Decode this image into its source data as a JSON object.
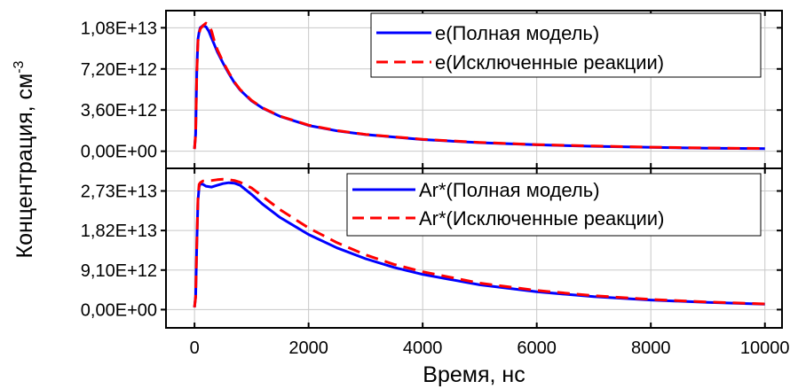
{
  "chart_data": [
    {
      "type": "line",
      "panel": "top",
      "xlabel": "Время, нс",
      "ylabel": "Концентрация, см",
      "ylabel_superscript": "-3",
      "xlim": [
        -500,
        10300
      ],
      "ylim": [
        -1500000000000.0,
        12300000000000.0
      ],
      "xticks": [
        0,
        2000,
        4000,
        6000,
        8000,
        10000
      ],
      "xtick_labels": [
        "0",
        "2000",
        "4000",
        "6000",
        "8000",
        "10000"
      ],
      "yticks": [
        0,
        3600000000000.0,
        7200000000000.0,
        10800000000000.0
      ],
      "ytick_labels": [
        "0,00E+00",
        "3,60E+12",
        "7,20E+12",
        "1,08E+13"
      ],
      "grid": true,
      "legend_position": "top-right",
      "series": [
        {
          "name": "e(Полная модель)",
          "color": "#0000ff",
          "dash": "solid",
          "x": [
            0,
            20,
            40,
            60,
            80,
            100,
            150,
            200,
            250,
            300,
            350,
            400,
            500,
            600,
            700,
            800,
            1000,
            1200,
            1500,
            2000,
            2500,
            3000,
            4000,
            5000,
            6000,
            7000,
            8000,
            9000,
            10000
          ],
          "y": [
            200000000000.0,
            1500000000000.0,
            7000000000000.0,
            9800000000000.0,
            10400000000000.0,
            10800000000000.0,
            11000000000000.0,
            10900000000000.0,
            10500000000000.0,
            9900000000000.0,
            9300000000000.0,
            8700000000000.0,
            7700000000000.0,
            6800000000000.0,
            6000000000000.0,
            5350000000000.0,
            4400000000000.0,
            3750000000000.0,
            3050000000000.0,
            2250000000000.0,
            1780000000000.0,
            1450000000000.0,
            1020000000000.0,
            750000000000.0,
            560000000000.0,
            430000000000.0,
            340000000000.0,
            270000000000.0,
            220000000000.0
          ]
        },
        {
          "name": "e(Исключенные реакции)",
          "color": "#ff0000",
          "dash": "dashed",
          "x": [
            0,
            20,
            40,
            60,
            80,
            100,
            150,
            200,
            250,
            300,
            350,
            400,
            500,
            600,
            700,
            800,
            1000,
            1200,
            1500,
            2000,
            2500,
            3000,
            4000,
            5000,
            6000,
            7000,
            8000,
            9000,
            10000
          ],
          "y": [
            200000000000.0,
            1500000000000.0,
            6800000000000.0,
            9600000000000.0,
            10300000000000.0,
            10700000000000.0,
            11000000000000.0,
            11200000000000.0,
            11100000000000.0,
            10500000000000.0,
            9600000000000.0,
            8900000000000.0,
            7800000000000.0,
            6900000000000.0,
            6050000000000.0,
            5400000000000.0,
            4450000000000.0,
            3780000000000.0,
            3070000000000.0,
            2280000000000.0,
            1800000000000.0,
            1470000000000.0,
            1040000000000.0,
            770000000000.0,
            580000000000.0,
            450000000000.0,
            355000000000.0,
            285000000000.0,
            235000000000.0
          ]
        }
      ]
    },
    {
      "type": "line",
      "panel": "bottom",
      "xlim": [
        -500,
        10300
      ],
      "ylim": [
        -4200000000000.0,
        32500000000000.0
      ],
      "xticks": [
        0,
        2000,
        4000,
        6000,
        8000,
        10000
      ],
      "yticks": [
        0,
        9100000000000.0,
        18200000000000.0,
        27300000000000.0
      ],
      "ytick_labels": [
        "0,00E+00",
        "9,10E+12",
        "1,82E+13",
        "2,73E+13"
      ],
      "grid": true,
      "legend_position": "top-right",
      "series": [
        {
          "name": "Ar*(Полная модель)",
          "color": "#0000ff",
          "dash": "solid",
          "x": [
            0,
            20,
            40,
            60,
            80,
            100,
            150,
            200,
            300,
            400,
            500,
            600,
            700,
            800,
            1000,
            1200,
            1500,
            2000,
            2500,
            3000,
            3500,
            4000,
            5000,
            6000,
            7000,
            8000,
            9000,
            10000
          ],
          "y": [
            500000000000.0,
            3000000000000.0,
            15000000000000.0,
            25000000000000.0,
            28200000000000.0,
            29000000000000.0,
            28800000000000.0,
            28400000000000.0,
            28200000000000.0,
            28600000000000.0,
            29000000000000.0,
            29200000000000.0,
            29100000000000.0,
            28600000000000.0,
            26500000000000.0,
            24200000000000.0,
            21200000000000.0,
            17300000000000.0,
            14200000000000.0,
            11700000000000.0,
            9700000000000.0,
            8100000000000.0,
            5700000000000.0,
            4100000000000.0,
            3000000000000.0,
            2200000000000.0,
            1650000000000.0,
            1250000000000.0
          ]
        },
        {
          "name": "Ar*(Исключенные реакции)",
          "color": "#ff0000",
          "dash": "dashed",
          "x": [
            0,
            20,
            40,
            60,
            80,
            100,
            150,
            200,
            300,
            400,
            500,
            600,
            700,
            800,
            1000,
            1200,
            1500,
            2000,
            2500,
            3000,
            3500,
            4000,
            5000,
            6000,
            7000,
            8000,
            9000,
            10000
          ],
          "y": [
            500000000000.0,
            3000000000000.0,
            15000000000000.0,
            25500000000000.0,
            28800000000000.0,
            29200000000000.0,
            29600000000000.0,
            29600000000000.0,
            29700000000000.0,
            29900000000000.0,
            30000000000000.0,
            29900000000000.0,
            29700000000000.0,
            29300000000000.0,
            28000000000000.0,
            26000000000000.0,
            23000000000000.0,
            18800000000000.0,
            15400000000000.0,
            12600000000000.0,
            10400000000000.0,
            8700000000000.0,
            6100000000000.0,
            4400000000000.0,
            3200000000000.0,
            2350000000000.0,
            1750000000000.0,
            1300000000000.0
          ]
        }
      ]
    }
  ]
}
